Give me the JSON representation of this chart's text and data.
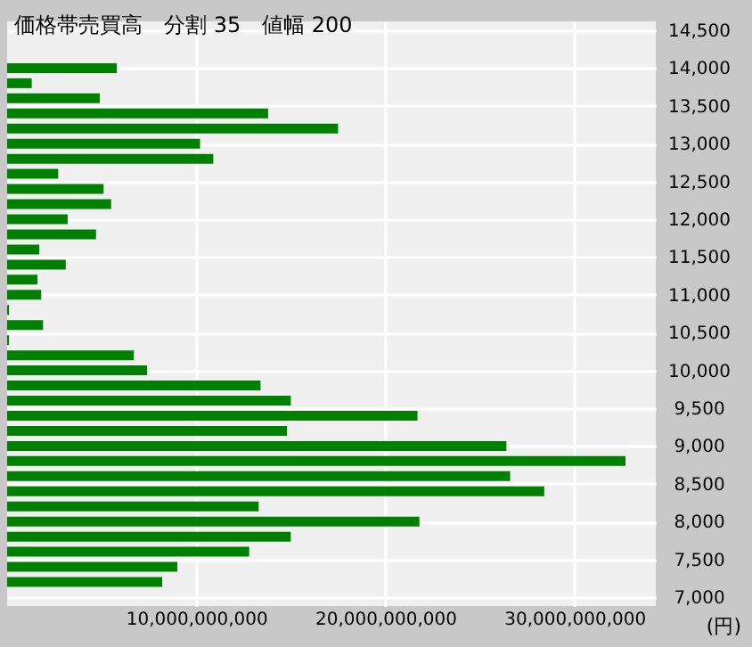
{
  "chart_data": {
    "type": "bar",
    "orientation": "horizontal",
    "title": "価格帯売買高　分割 35　値幅 200",
    "x": [
      14000,
      13800,
      13600,
      13400,
      13200,
      13000,
      12800,
      12600,
      12400,
      12200,
      12000,
      11800,
      11600,
      11400,
      11200,
      11000,
      10800,
      10600,
      10400,
      10200,
      10000,
      9800,
      9600,
      9400,
      9200,
      9000,
      8800,
      8600,
      8400,
      8200,
      8000,
      7800,
      7600,
      7400,
      7200
    ],
    "series": [
      {
        "color": "#008000",
        "values": [
          5800000000.0,
          1300000000.0,
          4900000000.0,
          13800000000.0,
          17500000000.0,
          10200000000.0,
          10900000000.0,
          2700000000.0,
          5100000000.0,
          5500000000.0,
          3200000000.0,
          4700000000.0,
          1700000000.0,
          3100000000.0,
          1600000000.0,
          1800000000.0,
          100000000.0,
          1900000000.0,
          100000000.0,
          6700000000.0,
          7400000000.0,
          13400000000.0,
          15000000000.0,
          21700000000.0,
          14800000000.0,
          26400000000.0,
          32700000000.0,
          26600000000.0,
          28400000000.0,
          13300000000.0,
          21800000000.0,
          15000000000.0,
          12800000000.0,
          9000000000.0,
          8200000000.0
        ]
      }
    ],
    "xlim": [
      0,
      34300000000
    ],
    "xticks": [
      {
        "value": 10000000000,
        "label": "10,000,000,000"
      },
      {
        "value": 20000000000,
        "label": "20,000,000,000"
      },
      {
        "value": 30000000000,
        "label": "30,000,000,000"
      }
    ],
    "ylim": [
      7000,
      14500
    ],
    "yticks": [
      {
        "value": 7000,
        "label": "7,000"
      },
      {
        "value": 7500,
        "label": "7,500"
      },
      {
        "value": 8000,
        "label": "8,000"
      },
      {
        "value": 8500,
        "label": "8,500"
      },
      {
        "value": 9000,
        "label": "9,000"
      },
      {
        "value": 9500,
        "label": "9,500"
      },
      {
        "value": 10000,
        "label": "10,000"
      },
      {
        "value": 10500,
        "label": "10,500"
      },
      {
        "value": 11000,
        "label": "11,000"
      },
      {
        "value": 11500,
        "label": "11,500"
      },
      {
        "value": 12000,
        "label": "12,000"
      },
      {
        "value": 12500,
        "label": "12,500"
      },
      {
        "value": 13000,
        "label": "13,000"
      },
      {
        "value": 13500,
        "label": "13,500"
      },
      {
        "value": 14000,
        "label": "14,000"
      },
      {
        "value": 14500,
        "label": "14,500"
      }
    ],
    "grid": true,
    "annotations": [
      "(円)"
    ]
  }
}
